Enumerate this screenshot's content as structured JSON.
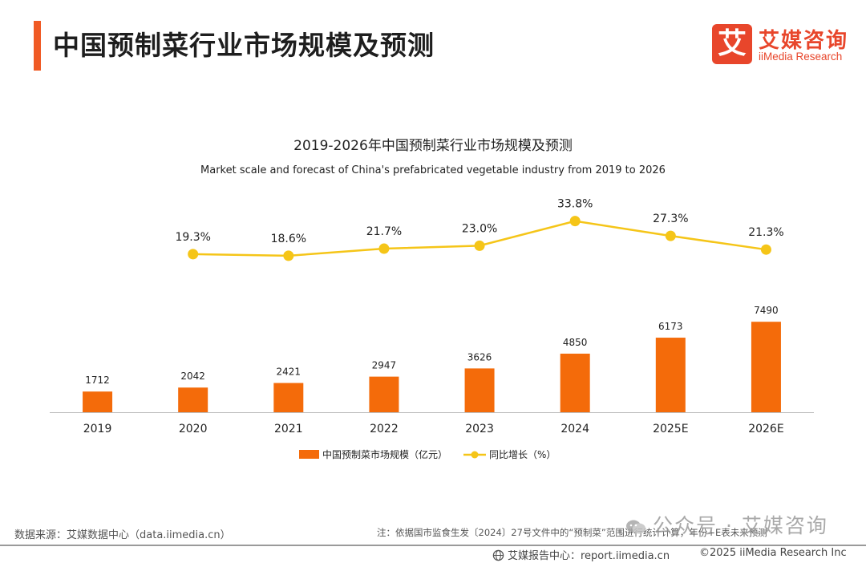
{
  "header": {
    "title": "中国预制菜行业市场规模及预测",
    "logo_mark": "艾",
    "logo_cn": "艾媒咨询",
    "logo_en": "iiMedia Research"
  },
  "colors": {
    "accent": "#f05a24",
    "bar": "#f46b0a",
    "line": "#f5c518",
    "axis": "#bdbdbd"
  },
  "chart_data": {
    "type": "bar",
    "title": "2019-2026年中国预制菜行业市场规模及预测",
    "subtitle": "Market scale and forecast of China's prefabricated vegetable industry from 2019 to 2026",
    "categories": [
      "2019",
      "2020",
      "2021",
      "2022",
      "2023",
      "2024",
      "2025E",
      "2026E"
    ],
    "series": [
      {
        "name": "中国预制菜市场规模（亿元）",
        "type": "bar",
        "values": [
          1712,
          2042,
          2421,
          2947,
          3626,
          4850,
          6173,
          7490
        ],
        "labels": [
          "1712",
          "2042",
          "2421",
          "2947",
          "3626",
          "4850",
          "6173",
          "7490"
        ]
      },
      {
        "name": "同比增长（%）",
        "type": "line",
        "values": [
          null,
          19.3,
          18.6,
          21.7,
          23.0,
          33.8,
          27.3,
          21.3
        ],
        "labels": [
          "",
          "19.3%",
          "18.6%",
          "21.7%",
          "23.0%",
          "33.8%",
          "27.3%",
          "21.3%"
        ]
      }
    ],
    "bar_ylim": [
      0,
      17000
    ],
    "line_ylim": [
      -50,
      40
    ],
    "grid": false,
    "legend_position": "bottom"
  },
  "footer": {
    "source": "数据来源：艾媒数据中心（data.iimedia.cn）",
    "note": "注：依据国市监食生发〔2024〕27号文件中的“预制菜”范围进行统计计算，年份+E表未来预测",
    "watermark": "公众号 · 艾媒咨询",
    "report_center": "艾媒报告中心：report.iimedia.cn",
    "copyright": "©2025  iiMedia Research  Inc"
  }
}
